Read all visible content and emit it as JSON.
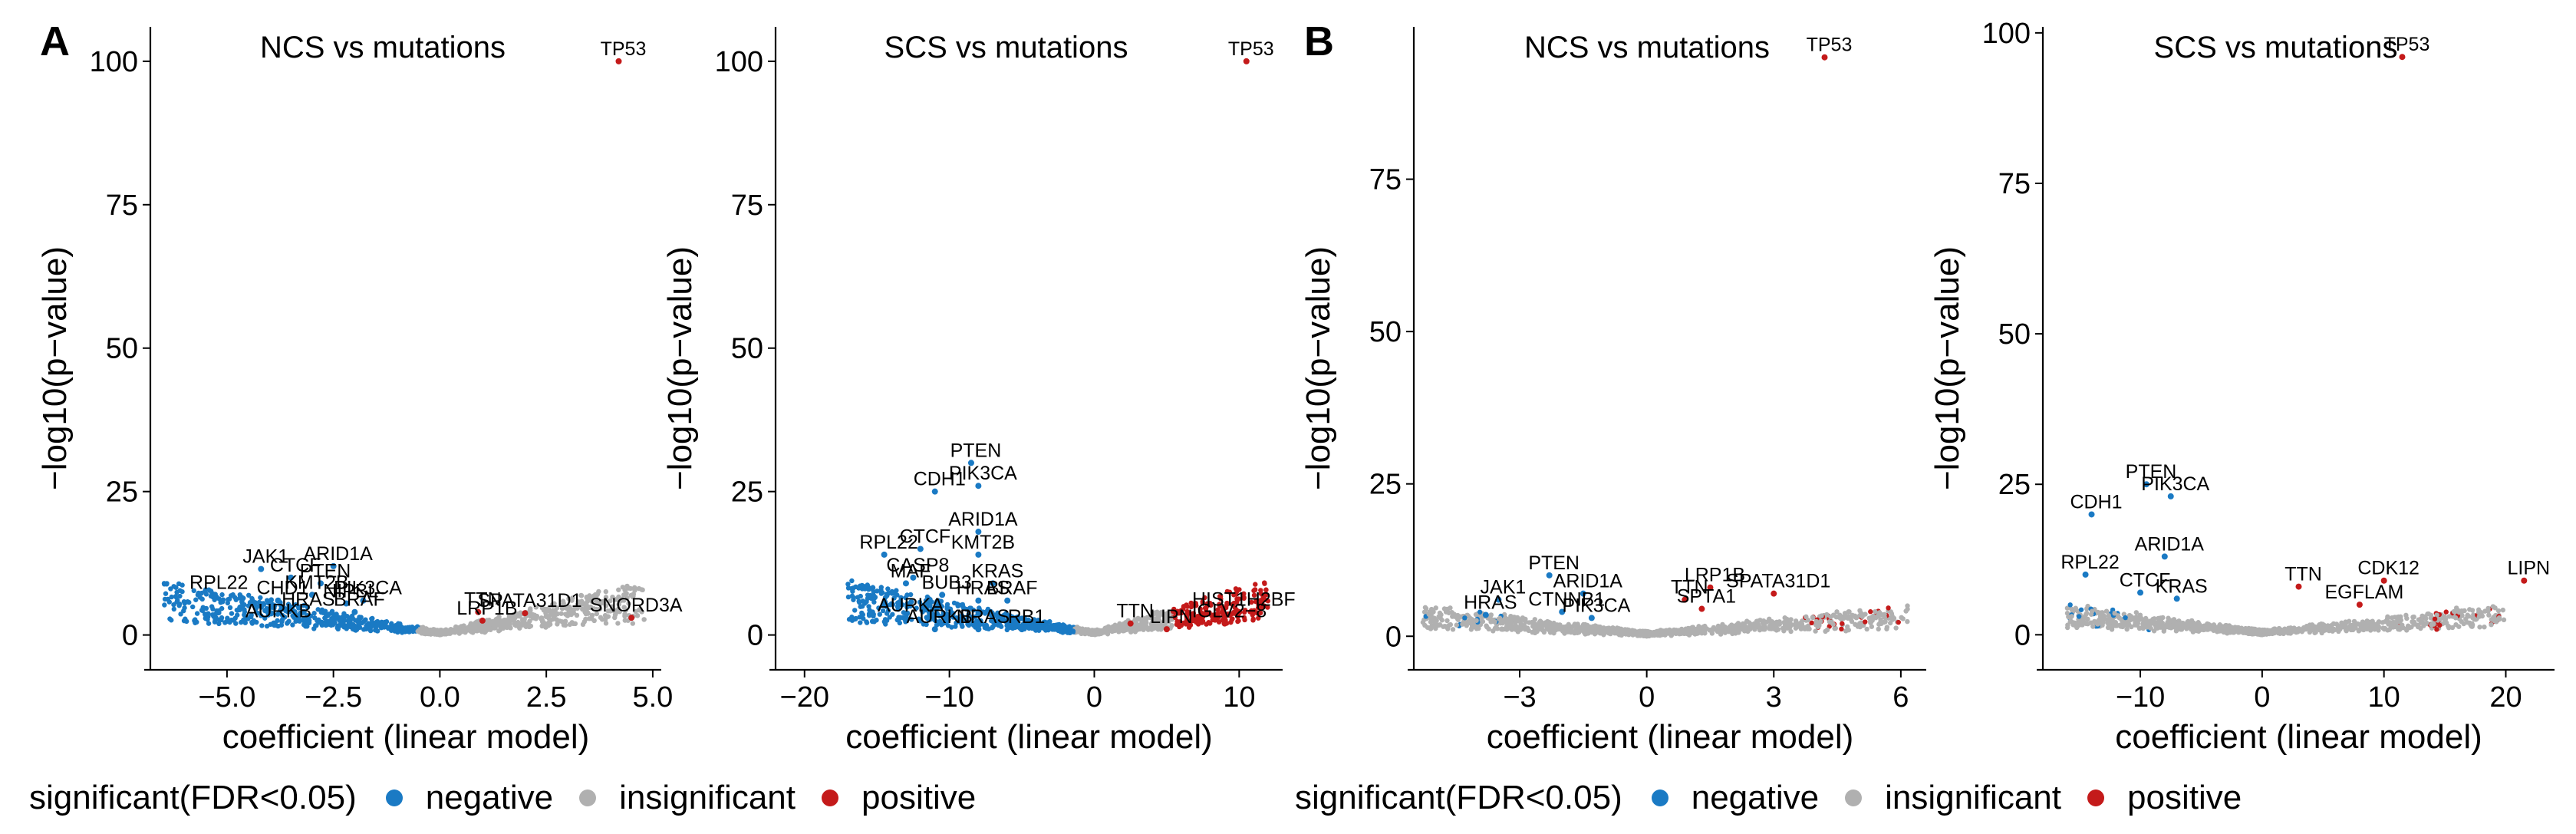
{
  "colors": {
    "negative": "#1a7ac4",
    "insignificant": "#b0b0b0",
    "positive": "#c41a1a",
    "axis": "#000000"
  },
  "panel_letters": [
    "A",
    "B"
  ],
  "legend": {
    "title": "significant(FDR<0.05)",
    "items": [
      {
        "label": "negative",
        "color": "#1a7ac4"
      },
      {
        "label": "insignificant",
        "color": "#b0b0b0"
      },
      {
        "label": "positive",
        "color": "#c41a1a"
      }
    ]
  },
  "chart_data": [
    {
      "type": "scatter",
      "panel": "A",
      "title": "NCS vs mutations",
      "xlabel": "coefficient (linear model)",
      "ylabel": "−log10(p−value)",
      "xlim": [
        -6.8,
        5.2
      ],
      "ylim": [
        -5,
        106
      ],
      "xticks": [
        -5.0,
        -2.5,
        0.0,
        2.5,
        5.0
      ],
      "xtick_labels": [
        "−5.0",
        "−2.5",
        "0.0",
        "2.5",
        "5.0"
      ],
      "yticks": [
        0,
        25,
        50,
        75,
        100
      ],
      "cloud": {
        "neg_x": [
          -6.5,
          0
        ],
        "pos_x": [
          0,
          4.8
        ],
        "max_y": 8
      },
      "highlights": [
        {
          "gene": "TP53",
          "x": 4.2,
          "y": 100,
          "sig": "positive"
        },
        {
          "gene": "ARID1A",
          "x": -2.5,
          "y": 12,
          "sig": "negative"
        },
        {
          "gene": "CTCF",
          "x": -3.5,
          "y": 10,
          "sig": "negative"
        },
        {
          "gene": "JAK1",
          "x": -4.2,
          "y": 11.5,
          "sig": "negative"
        },
        {
          "gene": "PTEN",
          "x": -2.8,
          "y": 9,
          "sig": "negative"
        },
        {
          "gene": "KMT2B",
          "x": -3.0,
          "y": 7,
          "sig": "negative"
        },
        {
          "gene": "PIK3CA",
          "x": -1.8,
          "y": 6,
          "sig": "negative"
        },
        {
          "gene": "RPL22",
          "x": -5.3,
          "y": 7,
          "sig": "negative"
        },
        {
          "gene": "CHD1",
          "x": -3.8,
          "y": 6,
          "sig": "negative"
        },
        {
          "gene": "NIPBL",
          "x": -2.2,
          "y": 5.5,
          "sig": "negative"
        },
        {
          "gene": "HRAS",
          "x": -3.2,
          "y": 4,
          "sig": "negative"
        },
        {
          "gene": "BRAF",
          "x": -2.0,
          "y": 4,
          "sig": "negative"
        },
        {
          "gene": "AURKB",
          "x": -3.9,
          "y": 2,
          "sig": "negative"
        },
        {
          "gene": "TTN",
          "x": 0.9,
          "y": 4,
          "sig": "positive"
        },
        {
          "gene": "SPATA31D1",
          "x": 2.0,
          "y": 3.8,
          "sig": "positive"
        },
        {
          "gene": "LRP1B",
          "x": 1.0,
          "y": 2.5,
          "sig": "positive"
        },
        {
          "gene": "SNORD3A",
          "x": 4.5,
          "y": 3,
          "sig": "positive"
        }
      ]
    },
    {
      "type": "scatter",
      "panel": "A",
      "title": "SCS vs mutations",
      "xlabel": "coefficient (linear model)",
      "ylabel": "−log10(p−value)",
      "xlim": [
        -22,
        13
      ],
      "ylim": [
        -5,
        106
      ],
      "xticks": [
        -20,
        -10,
        0,
        10
      ],
      "xtick_labels": [
        "−20",
        "−10",
        "0",
        "10"
      ],
      "yticks": [
        0,
        25,
        50,
        75,
        100
      ],
      "cloud": {
        "neg_x": [
          -17,
          0
        ],
        "pos_x": [
          0,
          12
        ],
        "max_y": 8
      },
      "highlights": [
        {
          "gene": "TP53",
          "x": 10.5,
          "y": 100,
          "sig": "positive"
        },
        {
          "gene": "PTEN",
          "x": -8.5,
          "y": 30,
          "sig": "negative"
        },
        {
          "gene": "CDH1",
          "x": -11,
          "y": 25,
          "sig": "negative"
        },
        {
          "gene": "PIK3CA",
          "x": -8,
          "y": 26,
          "sig": "negative"
        },
        {
          "gene": "ARID1A",
          "x": -8,
          "y": 18,
          "sig": "negative"
        },
        {
          "gene": "RPL22",
          "x": -14.5,
          "y": 14,
          "sig": "negative"
        },
        {
          "gene": "CTCF",
          "x": -12,
          "y": 15,
          "sig": "negative"
        },
        {
          "gene": "KMT2B",
          "x": -8,
          "y": 14,
          "sig": "negative"
        },
        {
          "gene": "CASP8",
          "x": -12.5,
          "y": 10,
          "sig": "negative"
        },
        {
          "gene": "MAF",
          "x": -13,
          "y": 9,
          "sig": "negative"
        },
        {
          "gene": "KRAS",
          "x": -7,
          "y": 9,
          "sig": "negative"
        },
        {
          "gene": "BUB3",
          "x": -10.5,
          "y": 7,
          "sig": "negative"
        },
        {
          "gene": "HRAS",
          "x": -8,
          "y": 6,
          "sig": "negative"
        },
        {
          "gene": "BRAF",
          "x": -6,
          "y": 6,
          "sig": "negative"
        },
        {
          "gene": "AURKA",
          "x": -13,
          "y": 3,
          "sig": "negative"
        },
        {
          "gene": "AURKB",
          "x": -11,
          "y": 1,
          "sig": "negative"
        },
        {
          "gene": "NRAS",
          "x": -8,
          "y": 1,
          "sig": "negative"
        },
        {
          "gene": "RB1",
          "x": -5,
          "y": 1,
          "sig": "negative"
        },
        {
          "gene": "HIST1H2BF",
          "x": 10,
          "y": 4,
          "sig": "positive"
        },
        {
          "gene": "TTN",
          "x": 2.5,
          "y": 2,
          "sig": "positive"
        },
        {
          "gene": "IGLV2−8",
          "x": 9,
          "y": 2,
          "sig": "positive"
        },
        {
          "gene": "LIPN",
          "x": 5,
          "y": 1,
          "sig": "positive"
        }
      ]
    },
    {
      "type": "scatter",
      "panel": "B",
      "title": "NCS vs mutations",
      "xlabel": "coefficient (linear model)",
      "ylabel": "−log10(p−value)",
      "xlim": [
        -5.5,
        6.6
      ],
      "ylim": [
        -4.5,
        100
      ],
      "xticks": [
        -3,
        0,
        3,
        6
      ],
      "xtick_labels": [
        "−3",
        "0",
        "3",
        "6"
      ],
      "yticks": [
        0,
        25,
        50,
        75
      ],
      "cloud": {
        "neg_x": [
          -5.3,
          0
        ],
        "pos_x": [
          0,
          6.2
        ],
        "max_y": 4
      },
      "highlights": [
        {
          "gene": "TP53",
          "x": 4.2,
          "y": 95,
          "sig": "positive"
        },
        {
          "gene": "PTEN",
          "x": -2.3,
          "y": 10,
          "sig": "negative"
        },
        {
          "gene": "JAK1",
          "x": -3.5,
          "y": 6,
          "sig": "negative"
        },
        {
          "gene": "ARID1A",
          "x": -1.5,
          "y": 7,
          "sig": "negative"
        },
        {
          "gene": "CTNNB1",
          "x": -2.0,
          "y": 4,
          "sig": "negative"
        },
        {
          "gene": "HRAS",
          "x": -3.8,
          "y": 3.5,
          "sig": "negative"
        },
        {
          "gene": "PIK3CA",
          "x": -1.3,
          "y": 3,
          "sig": "negative"
        },
        {
          "gene": "LRP1B",
          "x": 1.5,
          "y": 8,
          "sig": "positive"
        },
        {
          "gene": "SPATA31D1",
          "x": 3.0,
          "y": 7,
          "sig": "positive"
        },
        {
          "gene": "TTN",
          "x": 0.9,
          "y": 6,
          "sig": "positive"
        },
        {
          "gene": "SPTA1",
          "x": 1.3,
          "y": 4.5,
          "sig": "positive"
        }
      ]
    },
    {
      "type": "scatter",
      "panel": "B",
      "title": "SCS vs mutations",
      "xlabel": "coefficient (linear model)",
      "ylabel": "−log10(p−value)",
      "xlim": [
        -18,
        24
      ],
      "ylim": [
        -4.8,
        101
      ],
      "xticks": [
        -10,
        0,
        10,
        20
      ],
      "xtick_labels": [
        "−10",
        "0",
        "10",
        "20"
      ],
      "yticks": [
        0,
        25,
        50,
        75,
        100
      ],
      "cloud": {
        "neg_x": [
          -16,
          0
        ],
        "pos_x": [
          0,
          20
        ],
        "max_y": 4
      },
      "highlights": [
        {
          "gene": "TP53",
          "x": 11.5,
          "y": 96,
          "sig": "positive"
        },
        {
          "gene": "PTEN",
          "x": -9.5,
          "y": 25,
          "sig": "negative"
        },
        {
          "gene": "PIK3CA",
          "x": -7.5,
          "y": 23,
          "sig": "negative"
        },
        {
          "gene": "CDH1",
          "x": -14,
          "y": 20,
          "sig": "negative"
        },
        {
          "gene": "ARID1A",
          "x": -8,
          "y": 13,
          "sig": "negative"
        },
        {
          "gene": "RPL22",
          "x": -14.5,
          "y": 10,
          "sig": "negative"
        },
        {
          "gene": "CTCF",
          "x": -10,
          "y": 7,
          "sig": "negative"
        },
        {
          "gene": "KRAS",
          "x": -7,
          "y": 6,
          "sig": "negative"
        },
        {
          "gene": "TTN",
          "x": 3,
          "y": 8,
          "sig": "positive"
        },
        {
          "gene": "CDK12",
          "x": 10,
          "y": 9,
          "sig": "positive"
        },
        {
          "gene": "EGFLAM",
          "x": 8,
          "y": 5,
          "sig": "positive"
        },
        {
          "gene": "LIPN",
          "x": 21.5,
          "y": 9,
          "sig": "positive"
        }
      ]
    }
  ]
}
